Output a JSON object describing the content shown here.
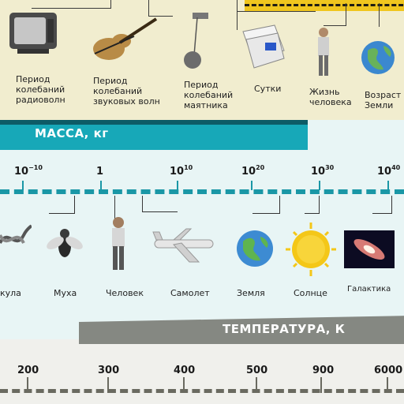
{
  "time_scale": {
    "labels": [
      "Период\nколебаний\nрадиоволн",
      "Период\nколебаний\nзвуковых волн",
      "Период\nколебаний\nмаятника",
      "Сутки",
      "Жизнь\nчеловека",
      "Возраст\nЗемли"
    ]
  },
  "mass_scale": {
    "title": "МАССА, кг",
    "ticks": [
      {
        "base": "10",
        "exp": "−10"
      },
      {
        "base": "1",
        "exp": ""
      },
      {
        "base": "10",
        "exp": "10"
      },
      {
        "base": "10",
        "exp": "20"
      },
      {
        "base": "10",
        "exp": "30"
      },
      {
        "base": "10",
        "exp": "40"
      }
    ],
    "objects": [
      "кула",
      "Муха",
      "Человек",
      "Самолет",
      "Земля",
      "Солнце",
      "Галактика"
    ]
  },
  "temperature_scale": {
    "title": "ТЕМПЕРАТУРА, К",
    "ticks": [
      "200",
      "300",
      "400",
      "500",
      "900",
      "6000"
    ]
  },
  "colors": {
    "mass_header": "#17a8b8",
    "mass_axis": "#1a97a6",
    "time_axis": "#f0c61e",
    "temp_header": "#858882"
  }
}
